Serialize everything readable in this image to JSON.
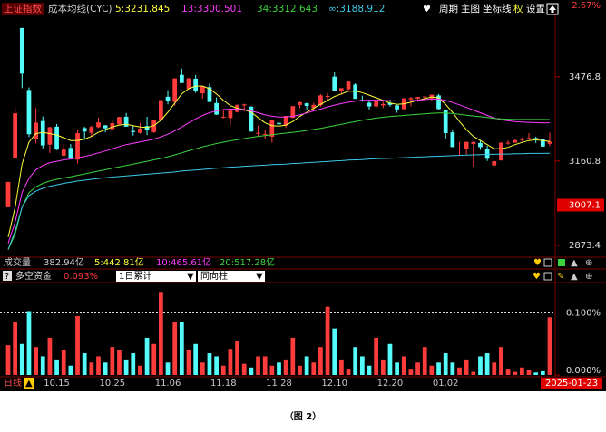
{
  "chart_data": [
    {
      "type": "candlestick",
      "title": "上证指数",
      "subtitle": "成本均线(CYC)",
      "categories": [
        null,
        null,
        null,
        null,
        null,
        null,
        null,
        "10.15",
        null,
        null,
        null,
        null,
        null,
        null,
        null,
        "10.25",
        null,
        null,
        null,
        null,
        null,
        null,
        null,
        "11.06",
        null,
        null,
        null,
        null,
        null,
        null,
        null,
        "11.18",
        null,
        null,
        null,
        null,
        null,
        null,
        null,
        "11.28",
        null,
        null,
        null,
        null,
        null,
        null,
        null,
        "12.10",
        null,
        null,
        null,
        null,
        null,
        null,
        null,
        "12.20",
        null,
        null,
        null,
        null,
        null,
        null,
        null,
        "01.02",
        null,
        null,
        null,
        null,
        null,
        null,
        null,
        null,
        null,
        null,
        null,
        null,
        null,
        null,
        "2025-01-23"
      ],
      "open": [
        3000,
        3170,
        3674,
        3425,
        3240,
        3307,
        3220,
        3286,
        3180,
        3208,
        3166,
        3281,
        3263,
        3284,
        3291,
        3277,
        3295,
        3323,
        3270,
        3263,
        3288,
        3266,
        3310,
        3399,
        3379,
        3484,
        3430,
        3469,
        3412,
        3436,
        3375,
        3322,
        3318,
        3341,
        3366,
        3361,
        3260,
        3256,
        3249,
        3300,
        3290,
        3319,
        3367,
        3374,
        3356,
        3367,
        3400,
        3477,
        3420,
        3428,
        3446,
        3387,
        3376,
        3362,
        3366,
        3376,
        3366,
        3352,
        3389,
        3392,
        3397,
        3393,
        3404,
        3347,
        3265,
        3206,
        3205,
        3222,
        3226,
        3205,
        3145,
        3163,
        3224,
        3227,
        3237,
        3243,
        3244,
        3240,
        3223
      ],
      "high": [
        3087,
        3358,
        3674,
        3435,
        3356,
        3324,
        3285,
        3296,
        3222,
        3222,
        3273,
        3286,
        3290,
        3320,
        3292,
        3309,
        3323,
        3337,
        3291,
        3300,
        3323,
        3311,
        3386,
        3424,
        3471,
        3509,
        3472,
        3484,
        3440,
        3450,
        3396,
        3347,
        3347,
        3369,
        3372,
        3363,
        3290,
        3276,
        3310,
        3330,
        3326,
        3363,
        3381,
        3376,
        3376,
        3409,
        3413,
        3494,
        3433,
        3462,
        3451,
        3403,
        3384,
        3385,
        3380,
        3387,
        3367,
        3394,
        3398,
        3399,
        3403,
        3407,
        3410,
        3351,
        3273,
        3230,
        3230,
        3231,
        3237,
        3216,
        3161,
        3228,
        3235,
        3242,
        3246,
        3262,
        3249,
        3240,
        3264
      ],
      "low": [
        2999,
        3170,
        3432,
        3248,
        3224,
        3206,
        3190,
        3200,
        3178,
        3169,
        3152,
        3238,
        3247,
        3281,
        3265,
        3275,
        3294,
        3286,
        3253,
        3260,
        3255,
        3262,
        3305,
        3370,
        3365,
        3452,
        3427,
        3414,
        3392,
        3379,
        3330,
        3317,
        3290,
        3339,
        3343,
        3267,
        3250,
        3241,
        3227,
        3288,
        3281,
        3318,
        3355,
        3350,
        3344,
        3361,
        3387,
        3422,
        3406,
        3423,
        3391,
        3380,
        3348,
        3354,
        3356,
        3361,
        3338,
        3350,
        3362,
        3380,
        3387,
        3383,
        3350,
        3242,
        3211,
        3181,
        3185,
        3141,
        3201,
        3161,
        3140,
        3163,
        3220,
        3227,
        3233,
        3238,
        3226,
        3213,
        3215
      ],
      "close": [
        3087,
        3336,
        3489,
        3258,
        3301,
        3217,
        3284,
        3202,
        3202,
        3169,
        3262,
        3268,
        3285,
        3302,
        3280,
        3299,
        3322,
        3286,
        3266,
        3279,
        3272,
        3310,
        3386,
        3384,
        3470,
        3452,
        3470,
        3421,
        3439,
        3379,
        3331,
        3323,
        3346,
        3368,
        3370,
        3268,
        3263,
        3259,
        3310,
        3295,
        3326,
        3363,
        3378,
        3364,
        3368,
        3404,
        3402,
        3422,
        3432,
        3461,
        3391,
        3386,
        3362,
        3382,
        3371,
        3368,
        3351,
        3393,
        3394,
        3398,
        3400,
        3407,
        3352,
        3262,
        3211,
        3206,
        3230,
        3230,
        3211,
        3169,
        3160,
        3227,
        3227,
        3236,
        3241,
        3244,
        3242,
        3213,
        3231
      ],
      "up_color": "#ff3c3c",
      "down_color": "#54fcfc",
      "series": [
        {
          "name": "5:3231.845",
          "color": "#ffff3c",
          "values": [
            2900,
            3000,
            3150,
            3230,
            3260,
            3265,
            3260,
            3255,
            3245,
            3235,
            3235,
            3240,
            3250,
            3265,
            3275,
            3285,
            3292,
            3295,
            3290,
            3285,
            3283,
            3290,
            3310,
            3340,
            3375,
            3410,
            3430,
            3440,
            3440,
            3430,
            3410,
            3385,
            3365,
            3355,
            3350,
            3340,
            3320,
            3300,
            3290,
            3288,
            3292,
            3305,
            3325,
            3340,
            3355,
            3370,
            3385,
            3400,
            3410,
            3420,
            3420,
            3415,
            3405,
            3395,
            3385,
            3375,
            3370,
            3372,
            3378,
            3385,
            3392,
            3398,
            3395,
            3370,
            3340,
            3305,
            3275,
            3250,
            3235,
            3220,
            3205,
            3205,
            3210,
            3220,
            3228,
            3235,
            3238,
            3235,
            3231.845
          ]
        },
        {
          "name": "13:3300.501",
          "color": "#ff3cff",
          "values": [
            2880,
            2950,
            3050,
            3100,
            3130,
            3145,
            3155,
            3160,
            3165,
            3168,
            3172,
            3177,
            3183,
            3190,
            3197,
            3205,
            3213,
            3220,
            3225,
            3230,
            3235,
            3240,
            3248,
            3258,
            3270,
            3285,
            3300,
            3315,
            3328,
            3338,
            3345,
            3350,
            3352,
            3352,
            3350,
            3345,
            3338,
            3330,
            3325,
            3322,
            3322,
            3325,
            3330,
            3337,
            3345,
            3352,
            3360,
            3367,
            3373,
            3378,
            3382,
            3385,
            3386,
            3386,
            3385,
            3384,
            3383,
            3383,
            3384,
            3386,
            3388,
            3390,
            3390,
            3385,
            3377,
            3368,
            3358,
            3348,
            3338,
            3328,
            3318,
            3312,
            3308,
            3305,
            3303,
            3302,
            3301,
            3300,
            3300.501
          ]
        },
        {
          "name": "34:3312.643",
          "color": "#3cd23c",
          "values": [
            2860,
            2910,
            3000,
            3050,
            3070,
            3082,
            3090,
            3096,
            3101,
            3105,
            3110,
            3115,
            3120,
            3125,
            3130,
            3135,
            3140,
            3145,
            3150,
            3155,
            3160,
            3165,
            3170,
            3176,
            3183,
            3190,
            3198,
            3205,
            3212,
            3218,
            3224,
            3229,
            3234,
            3238,
            3242,
            3246,
            3250,
            3253,
            3256,
            3259,
            3262,
            3265,
            3268,
            3272,
            3276,
            3280,
            3285,
            3290,
            3295,
            3300,
            3305,
            3310,
            3314,
            3318,
            3321,
            3324,
            3326,
            3328,
            3330,
            3332,
            3334,
            3336,
            3337,
            3337,
            3335,
            3332,
            3329,
            3326,
            3323,
            3320,
            3317,
            3315,
            3314,
            3313,
            3313,
            3313,
            3313,
            3313,
            3312.643
          ]
        },
        {
          "name": "∞:3188.912",
          "color": "#3cc8e6",
          "values": [
            2860,
            2920,
            3000,
            3040,
            3055,
            3065,
            3072,
            3077,
            3082,
            3086,
            3090,
            3093,
            3096,
            3099,
            3102,
            3104,
            3106,
            3108,
            3110,
            3112,
            3114,
            3116,
            3118,
            3120,
            3122,
            3125,
            3127,
            3129,
            3131,
            3133,
            3135,
            3137,
            3139,
            3140,
            3142,
            3143,
            3145,
            3146,
            3148,
            3149,
            3150,
            3152,
            3153,
            3155,
            3156,
            3158,
            3159,
            3161,
            3162,
            3164,
            3165,
            3166,
            3168,
            3169,
            3170,
            3171,
            3172,
            3173,
            3174,
            3175,
            3176,
            3177,
            3178,
            3179,
            3180,
            3181,
            3182,
            3183,
            3184,
            3185,
            3185,
            3186,
            3186,
            3187,
            3187,
            3188,
            3188,
            3188,
            3188.912
          ]
        }
      ],
      "ylim": [
        2841,
        3738
      ],
      "log_scale": true,
      "yticks": [
        3476.8,
        3160.8,
        2873.4
      ],
      "pct_label": "2.67%",
      "cursor_price": 3007.1
    },
    {
      "type": "bar",
      "title": "多空资金",
      "options": [
        "1日累计",
        "同向柱"
      ],
      "values": [
        0.048,
        0.085,
        0.05,
        0.103,
        0.045,
        0.03,
        0.06,
        0.025,
        0.04,
        0.015,
        0.095,
        0.035,
        0.02,
        0.03,
        0.02,
        0.045,
        0.04,
        0.025,
        0.035,
        0.015,
        0.06,
        0.05,
        0.134,
        0.02,
        0.085,
        0.085,
        0.04,
        0.05,
        0.02,
        0.035,
        0.03,
        0.015,
        0.042,
        0.055,
        0.018,
        0.012,
        0.03,
        0.03,
        0.015,
        0.02,
        0.025,
        0.06,
        0.015,
        0.03,
        0.02,
        0.045,
        0.11,
        0.075,
        0.025,
        0.01,
        0.045,
        0.03,
        0.015,
        0.06,
        0.025,
        0.05,
        0.02,
        0.03,
        0.01,
        0.02,
        0.045,
        0.015,
        0.02,
        0.035,
        0.02,
        0.012,
        0.025,
        0.005,
        0.03,
        0.035,
        0.02,
        0.045,
        0.01,
        0.005,
        0.012,
        0.008,
        0.004,
        0.006,
        0.093
      ],
      "value_labels": [
        null,
        null,
        null,
        null,
        null,
        null,
        null,
        null,
        null,
        null,
        null,
        null,
        null,
        null,
        null,
        null,
        null,
        null,
        null,
        null,
        null,
        null,
        null,
        null,
        null,
        null,
        null,
        null,
        null,
        null,
        null,
        null,
        null,
        null,
        null,
        null,
        null,
        null,
        null,
        null,
        null,
        null,
        null,
        null,
        null,
        null,
        null,
        null,
        null,
        null,
        null,
        null,
        null,
        null,
        null,
        null,
        null,
        null,
        null,
        null,
        null,
        null,
        null,
        null,
        null,
        null,
        null,
        null,
        null,
        null,
        null,
        null,
        null,
        null,
        null,
        null,
        null,
        null,
        "0.093%"
      ],
      "ylim": [
        0,
        0.149
      ],
      "yticks": [
        {
          "value": 0.1,
          "label": "0.100%"
        },
        {
          "value": 0,
          "label": "0.000%"
        }
      ],
      "grid": true
    }
  ],
  "volume_header": {
    "title": "成交量",
    "total": "382.94亿",
    "ma": [
      "5:442.81亿",
      "10:465.61亿",
      "20:517.28亿"
    ]
  },
  "toolbar": [
    "周期",
    "主图",
    "坐标线",
    "权",
    "设置"
  ],
  "period": "日线",
  "caption": "（图 2）"
}
